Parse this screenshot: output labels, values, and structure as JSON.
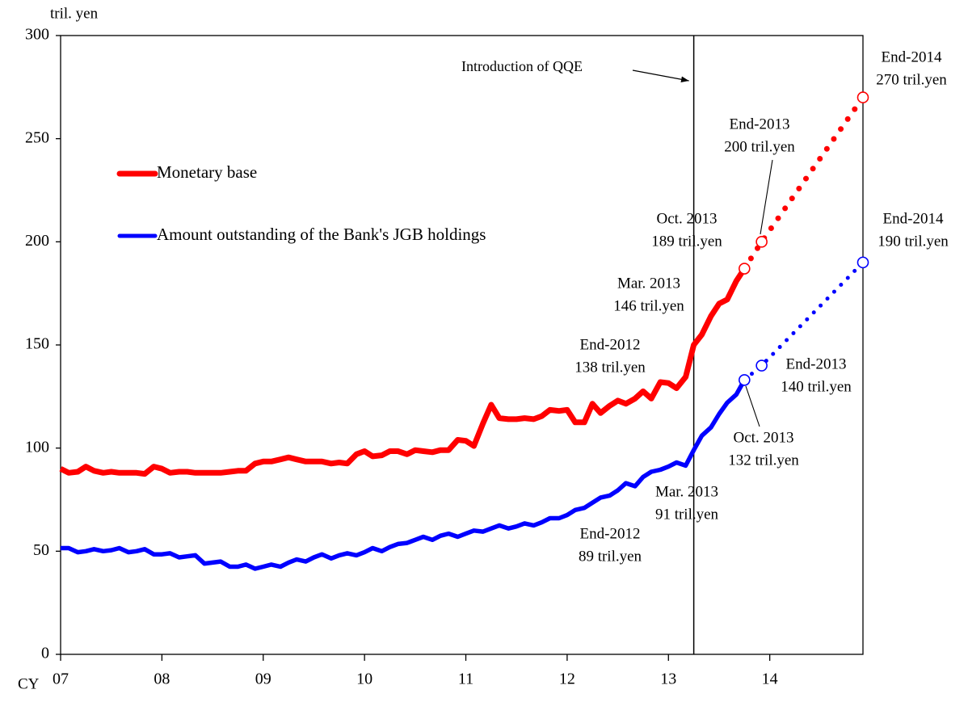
{
  "chart_data": {
    "type": "line",
    "y_label": "tril. yen",
    "x_label": "CY",
    "xlim": [
      7,
      14.92
    ],
    "xticks": [
      {
        "value": 7,
        "label": "07"
      },
      {
        "value": 8,
        "label": "08"
      },
      {
        "value": 9,
        "label": "09"
      },
      {
        "value": 10,
        "label": "10"
      },
      {
        "value": 11,
        "label": "11"
      },
      {
        "value": 12,
        "label": "12"
      },
      {
        "value": 13,
        "label": "13"
      },
      {
        "value": 14,
        "label": "14"
      }
    ],
    "ylim": [
      0,
      300
    ],
    "yticks": [
      0,
      50,
      100,
      150,
      200,
      250,
      300
    ],
    "legend": "upper left",
    "x": [
      7,
      7.08,
      7.17,
      7.25,
      7.33,
      7.42,
      7.5,
      7.58,
      7.67,
      7.75,
      7.83,
      7.92,
      8,
      8.08,
      8.17,
      8.25,
      8.33,
      8.42,
      8.5,
      8.58,
      8.67,
      8.75,
      8.83,
      8.92,
      9,
      9.08,
      9.17,
      9.25,
      9.33,
      9.42,
      9.5,
      9.58,
      9.67,
      9.75,
      9.83,
      9.92,
      10,
      10.08,
      10.17,
      10.25,
      10.33,
      10.42,
      10.5,
      10.58,
      10.67,
      10.75,
      10.83,
      10.92,
      11,
      11.08,
      11.17,
      11.25,
      11.33,
      11.42,
      11.5,
      11.58,
      11.67,
      11.75,
      11.83,
      11.92,
      12,
      12.08,
      12.17,
      12.25,
      12.33,
      12.42,
      12.5,
      12.58,
      12.67,
      12.75,
      12.83,
      12.92,
      13,
      13.08,
      13.17,
      13.25,
      13.33,
      13.42,
      13.5,
      13.58,
      13.67,
      13.75
    ],
    "series": [
      {
        "name": "Monetary base",
        "color": "#ff0000",
        "values": [
          90,
          88,
          88.5,
          91,
          89,
          88,
          88.5,
          88,
          88,
          88,
          87.5,
          91,
          90,
          88,
          88.5,
          88.5,
          88,
          88,
          88,
          88,
          88.5,
          89,
          89,
          92.5,
          93.5,
          93.5,
          94.5,
          95.5,
          94.5,
          93.5,
          93.5,
          93.5,
          92.5,
          93,
          92.5,
          97,
          98.5,
          96,
          96.5,
          98.5,
          98.5,
          97,
          99,
          98.5,
          98,
          99,
          99,
          104,
          103.5,
          101,
          112,
          121,
          114.5,
          114,
          114,
          114.5,
          114,
          115.5,
          118.5,
          118,
          118.5,
          112.5,
          112.5,
          121.5,
          117,
          120.5,
          123,
          121.5,
          124,
          127.5,
          124,
          132,
          131.5,
          129,
          134.5,
          150,
          155,
          164,
          170,
          172,
          181,
          187
        ],
        "projection": {
          "x": [
            13.75,
            13.92,
            14.92
          ],
          "values": [
            187,
            200,
            270
          ]
        }
      },
      {
        "name": "Amount outstanding of the Bank's JGB holdings",
        "color": "#0000ff",
        "values": [
          51.5,
          51.5,
          49.5,
          50,
          51,
          50,
          50.5,
          51.5,
          49.5,
          50,
          51,
          48.5,
          48.5,
          49,
          47,
          47.5,
          48,
          44,
          44.5,
          45,
          42.5,
          42.5,
          43.5,
          41.5,
          42.5,
          43.5,
          42.5,
          44.5,
          46,
          45,
          47,
          48.5,
          46.5,
          48,
          49,
          48,
          49.5,
          51.5,
          50,
          52,
          53.5,
          54,
          55.5,
          57,
          55.5,
          57.5,
          58.5,
          57,
          58.5,
          60,
          59.5,
          61,
          62.5,
          61,
          62,
          63.5,
          62.5,
          64,
          66,
          66,
          67.5,
          70,
          71,
          73.5,
          76,
          77,
          79.5,
          83,
          81.5,
          86,
          88.5,
          89.5,
          91,
          93,
          91.5,
          99,
          106,
          110,
          116.5,
          122,
          126,
          133
        ],
        "projection": {
          "x": [
            13.75,
            13.92,
            14.92
          ],
          "values": [
            133,
            140,
            190
          ]
        }
      }
    ],
    "event": {
      "x": 13.25,
      "label": "Introduction of QQE"
    },
    "annotations": [
      {
        "lines": [
          "End-2014",
          "270 tril.yen"
        ]
      },
      {
        "lines": [
          "End-2013",
          "200 tril.yen"
        ]
      },
      {
        "lines": [
          "Oct. 2013",
          "189 tril.yen"
        ]
      },
      {
        "lines": [
          "Mar. 2013",
          "146 tril.yen"
        ]
      },
      {
        "lines": [
          "End-2012",
          "138 tril.yen"
        ]
      },
      {
        "lines": [
          "End-2014",
          "190 tril.yen"
        ]
      },
      {
        "lines": [
          "End-2013",
          "140 tril.yen"
        ]
      },
      {
        "lines": [
          "Oct. 2013",
          "132 tril.yen"
        ]
      },
      {
        "lines": [
          "Mar. 2013",
          "91 tril.yen"
        ]
      },
      {
        "lines": [
          "End-2012",
          "89 tril.yen"
        ]
      }
    ]
  }
}
